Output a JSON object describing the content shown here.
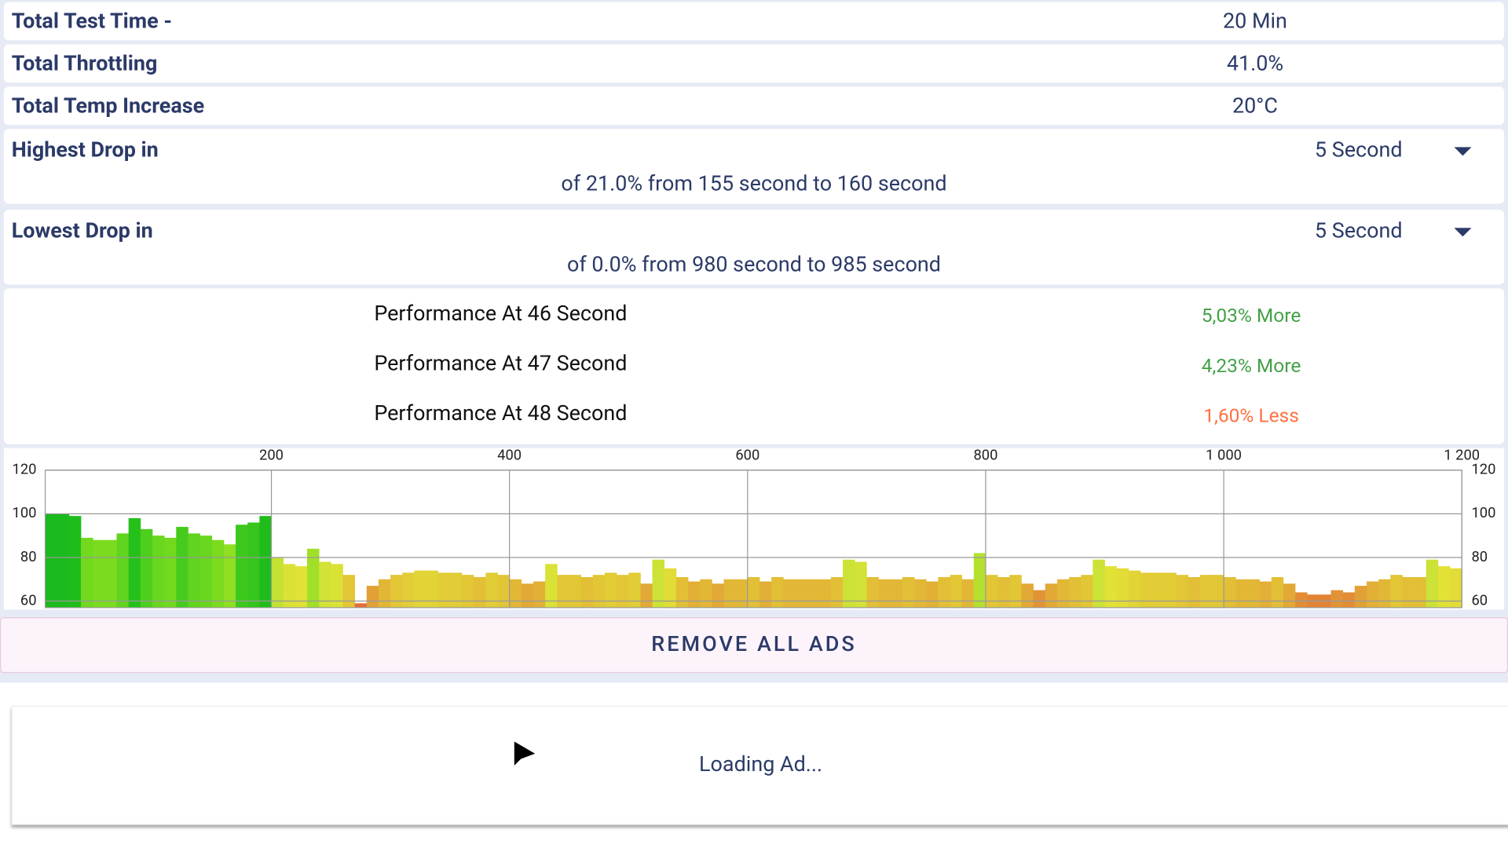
{
  "rows": [
    {
      "label": "Total Test Time -",
      "value": "20 Min"
    },
    {
      "label": "Total Throttling",
      "value": "41.0%"
    },
    {
      "label": "Total Temp Increase",
      "value": "20°C"
    }
  ],
  "drops": [
    {
      "label": "Highest Drop in",
      "select": "5 Second",
      "detail": "of 21.0% from 155 second to  160 second"
    },
    {
      "label": "Lowest Drop in",
      "select": "5 Second",
      "detail": "of 0.0% from 980 second to  985 second"
    }
  ],
  "performance": [
    {
      "label": "Performance At 46 Second",
      "value": "5,03% More",
      "color": "#43a047"
    },
    {
      "label": "Performance At 47 Second",
      "value": "4,23% More",
      "color": "#43a047"
    },
    {
      "label": "Performance At 48 Second",
      "value": "1,60% Less",
      "color": "#ff7043"
    }
  ],
  "chart_data": {
    "type": "bar",
    "x": [
      20,
      30,
      40,
      50,
      60,
      70,
      80,
      90,
      100,
      110,
      120,
      130,
      140,
      150,
      160,
      170,
      180,
      190,
      200,
      210,
      220,
      230,
      240,
      250,
      260,
      270,
      280,
      290,
      300,
      310,
      320,
      330,
      340,
      350,
      360,
      370,
      380,
      390,
      400,
      410,
      420,
      430,
      440,
      450,
      460,
      470,
      480,
      490,
      500,
      510,
      520,
      530,
      540,
      550,
      560,
      570,
      580,
      590,
      600,
      610,
      620,
      630,
      640,
      650,
      660,
      670,
      680,
      690,
      700,
      710,
      720,
      730,
      740,
      750,
      760,
      770,
      780,
      790,
      800,
      810,
      820,
      830,
      840,
      850,
      860,
      870,
      880,
      890,
      900,
      910,
      920,
      930,
      940,
      950,
      960,
      970,
      980,
      990,
      1000,
      1010,
      1020,
      1030,
      1040,
      1050,
      1060,
      1070,
      1080,
      1090,
      1100,
      1110,
      1120,
      1130,
      1140,
      1150,
      1160,
      1170,
      1180,
      1190,
      1200
    ],
    "values": [
      100,
      100,
      99,
      89,
      88,
      88,
      91,
      98,
      93,
      90,
      89,
      94,
      91,
      90,
      88,
      86,
      95,
      96,
      99,
      80,
      77,
      76,
      84,
      78,
      77,
      72,
      59,
      67,
      70,
      72,
      73,
      74,
      74,
      73,
      73,
      72,
      71,
      73,
      72,
      70,
      68,
      69,
      77,
      72,
      72,
      71,
      72,
      73,
      72,
      73,
      68,
      79,
      75,
      71,
      69,
      70,
      68,
      70,
      70,
      71,
      69,
      71,
      70,
      70,
      70,
      70,
      71,
      79,
      78,
      71,
      70,
      70,
      71,
      70,
      69,
      71,
      72,
      70,
      82,
      72,
      71,
      72,
      68,
      65,
      68,
      70,
      71,
      72,
      79,
      76,
      75,
      74,
      73,
      73,
      73,
      72,
      71,
      72,
      72,
      71,
      70,
      70,
      69,
      71,
      68,
      64,
      63,
      63,
      65,
      64,
      67,
      69,
      70,
      72,
      71,
      71,
      79,
      76,
      75
    ],
    "xlim": [
      10,
      1200
    ],
    "ylim": [
      57,
      120
    ],
    "xticks": [
      200,
      400,
      600,
      800,
      {
        "value": 1000,
        "label": "1 000"
      },
      {
        "value": 1200,
        "label": "1 200"
      }
    ],
    "yticks": [
      60,
      80,
      100,
      120
    ],
    "grid": true
  },
  "button": "REMOVE ALL ADS",
  "ad": "Loading Ad..."
}
